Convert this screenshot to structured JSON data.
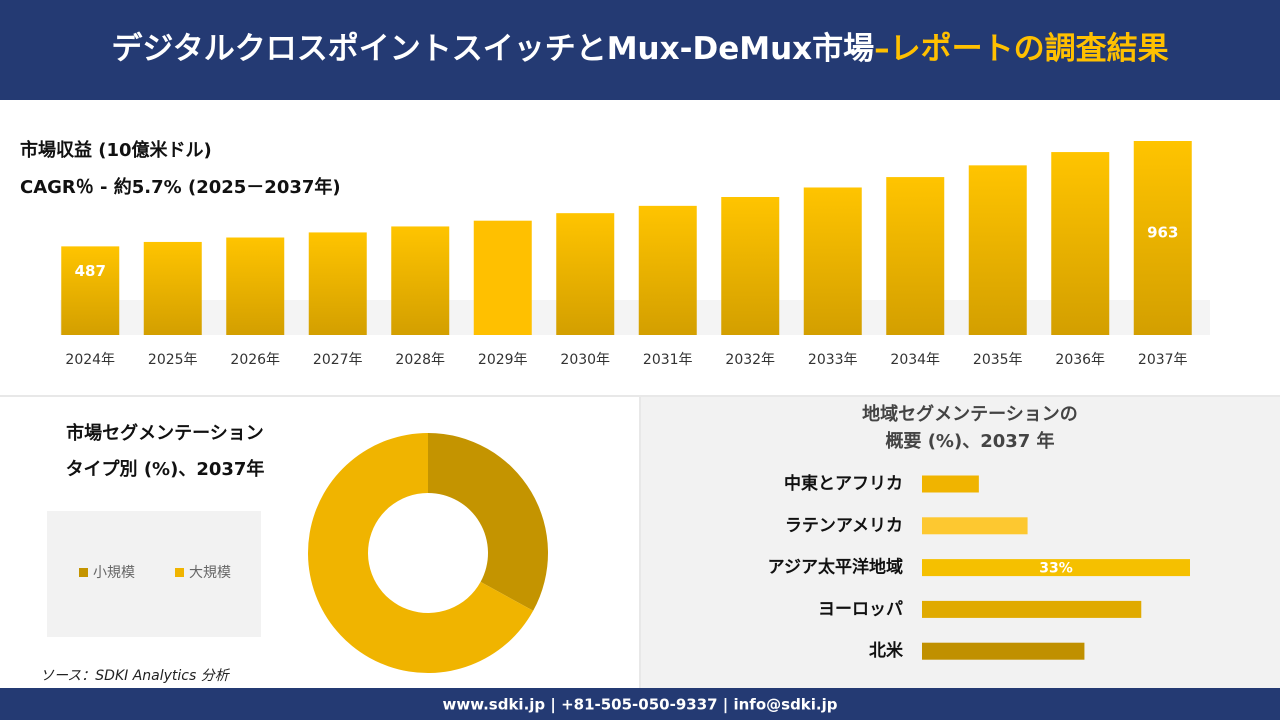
{
  "header": {
    "title": "デジタルクロスポイントスイッチとMux-DeMux市場",
    "title_accent": "–レポートの調査結果"
  },
  "source": "ソース：SDKI Analytics 分析",
  "footer": "www.sdki.jp | +81-505-050-9337 | info@sdki.jp",
  "chart_data": [
    {
      "type": "bar",
      "title": "市場収益 (10億米ドル)",
      "subtitle": "CAGR％ - 約5.7% (2025－2037年)",
      "categories": [
        "2024年",
        "2025年",
        "2026年",
        "2027年",
        "2028年",
        "2029年",
        "2030年",
        "2031年",
        "2032年",
        "2033年",
        "2034年",
        "2035年",
        "2036年",
        "2037年"
      ],
      "values": [
        487,
        507,
        527,
        550,
        577,
        603,
        637,
        670,
        710,
        753,
        800,
        853,
        913,
        963
      ],
      "color": "#e8b000",
      "ylim": [
        317,
        963
      ]
    },
    {
      "type": "donut",
      "title": "市場セグメンテーション",
      "subtitle": "タイプ別 (%)、2037年",
      "categories": [
        "小規模",
        "大規模"
      ],
      "values": [
        33,
        67
      ],
      "colors": [
        "#c49400",
        "#f0b400"
      ]
    },
    {
      "type": "barh",
      "title": "地域セグメンテーションの",
      "subtitle": "概要 (%)、2037 年",
      "categories": [
        "中東とアフリカ",
        "ラテンアメリカ",
        "アジア太平洋地域",
        "ヨーロッパ",
        "北米"
      ],
      "values": [
        7,
        13,
        33,
        27,
        20
      ],
      "value_labels": [
        null,
        null,
        "33%",
        null,
        null
      ],
      "colors": [
        "#f0b400",
        "#fdc830",
        "#f5c000",
        "#e0aa00",
        "#c09000"
      ],
      "xlim": [
        0,
        33
      ]
    }
  ]
}
